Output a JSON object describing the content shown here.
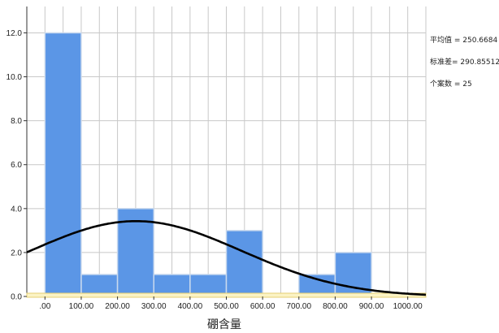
{
  "chart_data": {
    "type": "bar",
    "subtype": "histogram",
    "title": "",
    "xlabel": "硼含量",
    "ylabel": "",
    "bins": [
      {
        "x0": 0,
        "x1": 100,
        "count": 12
      },
      {
        "x0": 100,
        "x1": 200,
        "count": 1
      },
      {
        "x0": 200,
        "x1": 300,
        "count": 4
      },
      {
        "x0": 300,
        "x1": 400,
        "count": 1
      },
      {
        "x0": 400,
        "x1": 500,
        "count": 1
      },
      {
        "x0": 500,
        "x1": 600,
        "count": 3
      },
      {
        "x0": 600,
        "x1": 700,
        "count": 0
      },
      {
        "x0": 700,
        "x1": 800,
        "count": 1
      },
      {
        "x0": 800,
        "x1": 900,
        "count": 2
      },
      {
        "x0": 900,
        "x1": 1000,
        "count": 0
      }
    ],
    "xlim": [
      -50,
      1050
    ],
    "ylim": [
      0,
      13.2
    ],
    "xticks": [
      0,
      100,
      200,
      300,
      400,
      500,
      600,
      700,
      800,
      900,
      1000
    ],
    "xtick_labels": [
      ".00",
      "100.00",
      "200.00",
      "300.00",
      "400.00",
      "500.00",
      "600.00",
      "700.00",
      "800.00",
      "900.00",
      "1000.00"
    ],
    "yticks": [
      0,
      2,
      4,
      6,
      8,
      10,
      12
    ],
    "ytick_labels": [
      "0.0",
      "2.0",
      "4.0",
      "6.0",
      "8.0",
      "10.0",
      "12.0"
    ],
    "grid": true,
    "bar_color": "#5b96e6",
    "bar_edge_color": "#c9d9ee",
    "curve_color": "#000000",
    "normal_curve": {
      "mean": 250.6684,
      "std": 290.85512,
      "n": 25,
      "bin_width": 100
    },
    "stats_lines": [
      "平均值 = 250.6684",
      "标准差= 290.85512",
      "个案数 = 25"
    ]
  }
}
